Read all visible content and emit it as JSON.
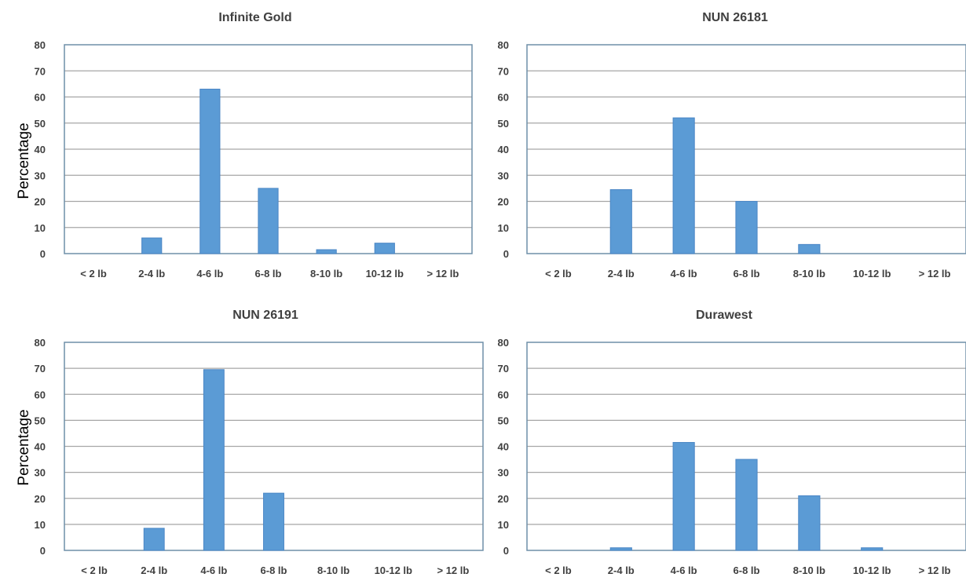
{
  "colors": {
    "bar": "#5b9bd5",
    "grid": "#a6a6a6",
    "frame": "#6f8fa8",
    "text": "#404040"
  },
  "chart_data": [
    {
      "type": "bar",
      "title": "Infinite Gold",
      "ylabel": "Percentage",
      "xlabel": "",
      "categories": [
        "< 2 lb",
        "2-4 lb",
        "4-6 lb",
        "6-8 lb",
        "8-10 lb",
        "10-12 lb",
        "> 12 lb"
      ],
      "values": [
        0,
        6,
        63,
        25,
        1.5,
        4,
        0
      ],
      "ylim": [
        0,
        80
      ],
      "yticks": [
        0,
        10,
        20,
        30,
        40,
        50,
        60,
        70,
        80
      ],
      "grid": true
    },
    {
      "type": "bar",
      "title": "NUN 26181",
      "ylabel": "",
      "xlabel": "",
      "categories": [
        "< 2 lb",
        "2-4 lb",
        "4-6 lb",
        "6-8 lb",
        "8-10 lb",
        "10-12 lb",
        "> 12 lb"
      ],
      "values": [
        0,
        24.5,
        52,
        20,
        3.5,
        0,
        0
      ],
      "ylim": [
        0,
        80
      ],
      "yticks": [
        0,
        10,
        20,
        30,
        40,
        50,
        60,
        70,
        80
      ],
      "grid": true
    },
    {
      "type": "bar",
      "title": "NUN 26191",
      "ylabel": "Percentage",
      "xlabel": "",
      "categories": [
        "< 2 lb",
        "2-4 lb",
        "4-6 lb",
        "6-8 lb",
        "8-10 lb",
        "10-12 lb",
        "> 12 lb"
      ],
      "values": [
        0,
        8.5,
        69.5,
        22,
        0,
        0,
        0
      ],
      "ylim": [
        0,
        80
      ],
      "yticks": [
        0,
        10,
        20,
        30,
        40,
        50,
        60,
        70,
        80
      ],
      "grid": true
    },
    {
      "type": "bar",
      "title": "Durawest",
      "ylabel": "",
      "xlabel": "",
      "categories": [
        "< 2 lb",
        "2-4 lb",
        "4-6 lb",
        "6-8 lb",
        "8-10 lb",
        "10-12 lb",
        "> 12 lb"
      ],
      "values": [
        0,
        1,
        41.5,
        35,
        21,
        1,
        0
      ],
      "ylim": [
        0,
        80
      ],
      "yticks": [
        0,
        10,
        20,
        30,
        40,
        50,
        60,
        70,
        80
      ],
      "grid": true
    }
  ]
}
